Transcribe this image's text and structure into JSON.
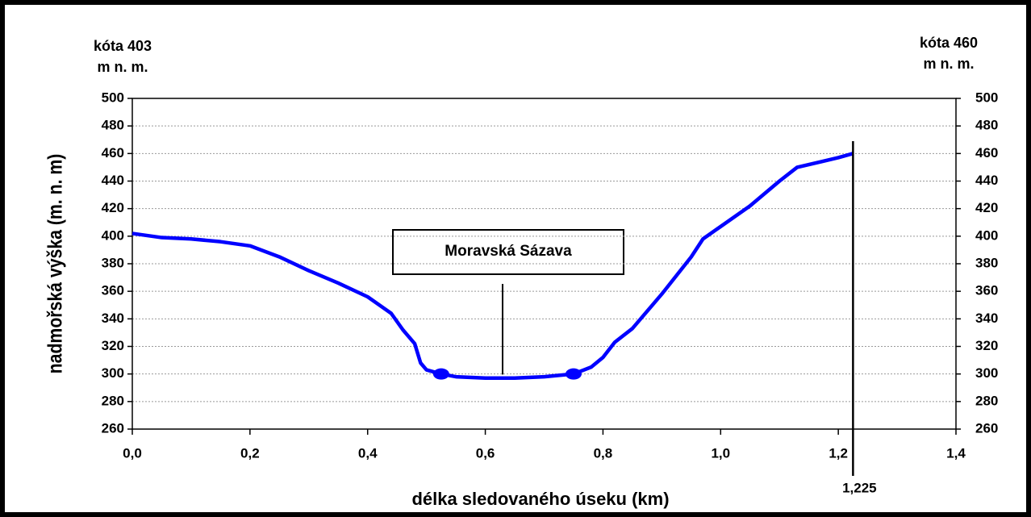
{
  "chart_data": {
    "type": "line",
    "xlabel": "délka sledovaného úseku (km)",
    "ylabel": "nadmořská výška (m. n. m)",
    "left_note": [
      "kóta 403",
      "m n. m."
    ],
    "right_note": [
      "kóta 460",
      "m n. m."
    ],
    "annotation": "Moravská Sázava",
    "vline": {
      "value": 1.225,
      "label": "1,225"
    },
    "xlim": [
      0,
      1.4
    ],
    "xticks": [
      {
        "value": 0,
        "label": "0,0"
      },
      {
        "value": 0.2,
        "label": "0,2"
      },
      {
        "value": 0.4,
        "label": "0,4"
      },
      {
        "value": 0.6,
        "label": "0,6"
      },
      {
        "value": 0.8,
        "label": "0,8"
      },
      {
        "value": 1.0,
        "label": "1,0"
      },
      {
        "value": 1.2,
        "label": "1,2"
      },
      {
        "value": 1.4,
        "label": "1,4"
      }
    ],
    "ylim": [
      260,
      500
    ],
    "yticks": [
      260,
      280,
      300,
      320,
      340,
      360,
      380,
      400,
      420,
      440,
      460,
      480,
      500
    ],
    "y2lim": [
      260,
      500
    ],
    "y2ticks": [
      260,
      280,
      300,
      320,
      340,
      360,
      380,
      400,
      420,
      440,
      460,
      480,
      500
    ],
    "grid": true,
    "series": [
      {
        "color": "#0000ff",
        "x": [
          0,
          0.05,
          0.1,
          0.15,
          0.2,
          0.25,
          0.3,
          0.35,
          0.4,
          0.44,
          0.46,
          0.48,
          0.49,
          0.5,
          0.525,
          0.55,
          0.6,
          0.65,
          0.7,
          0.75,
          0.78,
          0.8,
          0.82,
          0.85,
          0.9,
          0.95,
          0.97,
          1.0,
          1.05,
          1.1,
          1.13,
          1.2,
          1.225
        ],
        "values": [
          402,
          399,
          398,
          396,
          393,
          385,
          375,
          366,
          356,
          344,
          332,
          322,
          308,
          303,
          300,
          298,
          297,
          297,
          298,
          300,
          305,
          312,
          323,
          333,
          358,
          385,
          398,
          407,
          422,
          440,
          450,
          457,
          460
        ]
      }
    ],
    "points": {
      "color": "#0000ff",
      "x": [
        0.525,
        0.75
      ],
      "values": [
        300,
        300
      ]
    }
  }
}
